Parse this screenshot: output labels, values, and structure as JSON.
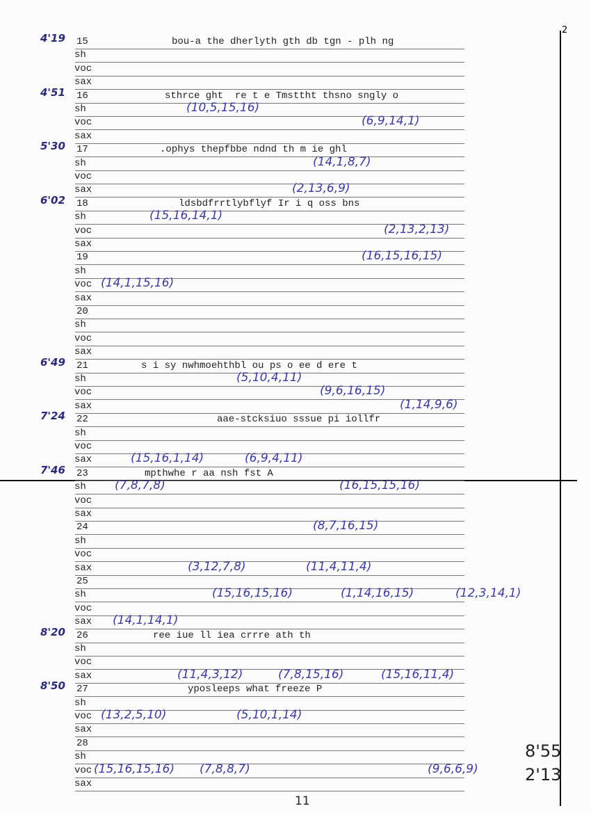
{
  "page_number": "2",
  "footer": "11",
  "totals": [
    "8'55",
    "2'13"
  ],
  "blocks": [
    {
      "number": "15",
      "time": "4'19",
      "text": "bou-a the dherlyth gth db tgn - plh ng",
      "rows": [
        "sh",
        "voc",
        "sax"
      ],
      "notes": []
    },
    {
      "number": "16",
      "time": "4'51",
      "text": "sthrce ght  re t e Tmsttht thsno sngly o",
      "rows": [
        "sh",
        "voc",
        "sax"
      ],
      "notes": [
        "(10,5,15,16)",
        "(6,9,14,1)"
      ]
    },
    {
      "number": "17",
      "time": "5'30",
      "text": ".ophys thepfbbe ndnd th m ie ghl",
      "rows": [
        "sh",
        "voc",
        "sax"
      ],
      "notes": [
        "(14,1,8,7)",
        "(2,13,6,9)"
      ]
    },
    {
      "number": "18",
      "time": "6'02",
      "text": "ldsbdfrrtlybflyf Ir i q oss bns",
      "rows": [
        "sh",
        "voc",
        "sax"
      ],
      "notes": [
        "(15,16,14,1)",
        "(2,13,2,13)"
      ]
    },
    {
      "number": "19",
      "rows": [
        "sh",
        "voc",
        "sax"
      ],
      "notes": [
        "(16,15,16,15)",
        "(14,1,15,16)"
      ]
    },
    {
      "number": "20",
      "rows": [
        "sh",
        "voc",
        "sax"
      ],
      "notes": []
    },
    {
      "number": "21",
      "time": "6'49",
      "text": "s i sy nwhmoehthbl ou ps o ee d ere t",
      "rows": [
        "sh",
        "voc",
        "sax"
      ],
      "notes": [
        "(5,10,4,11)",
        "(9,6,16,15)",
        "(1,14,9,6)"
      ]
    },
    {
      "number": "22",
      "time": "7'24",
      "text": "aae-stcksiuo sssue pi iollfr",
      "rows": [
        "sh",
        "voc",
        "sax"
      ],
      "notes": [
        "(15,16,1,14)",
        "(6,9,4,11)"
      ]
    },
    {
      "number": "23",
      "time": "7'46",
      "text": "mpthwhe r aa nsh fst A",
      "rows": [
        "sh",
        "voc",
        "sax"
      ],
      "notes": [
        "(7,8,7,8)",
        "(16,15,15,16)"
      ]
    },
    {
      "number": "24",
      "rows": [
        "sh",
        "voc",
        "sax"
      ],
      "notes": [
        "(8,7,16,15)",
        "(3,12,7,8)",
        "(11,4,11,4)"
      ]
    },
    {
      "number": "25",
      "rows": [
        "sh",
        "voc",
        "sax"
      ],
      "notes": [
        "(15,16,15,16)",
        "(1,14,16,15)",
        "(12,3,14,1)",
        "(14,1,14,1)"
      ]
    },
    {
      "number": "26",
      "time": "8'20",
      "text": "ree iue ll iea crrre ath th",
      "rows": [
        "sh",
        "voc",
        "sax"
      ],
      "notes": [
        "(11,4,3,12)",
        "(7,8,15,16)",
        "(15,16,11,4)"
      ]
    },
    {
      "number": "27",
      "time": "8'50",
      "text": "yposleeps what freeze P",
      "rows": [
        "sh",
        "voc",
        "sax"
      ],
      "notes": [
        "(13,2,5,10)",
        "(5,10,1,14)"
      ]
    },
    {
      "number": "28",
      "rows": [
        "sh",
        "voc",
        "sax"
      ],
      "notes": [
        "(15,16,15,16)",
        "(7,8,8,7)",
        "(9,6,6,9)"
      ]
    }
  ]
}
